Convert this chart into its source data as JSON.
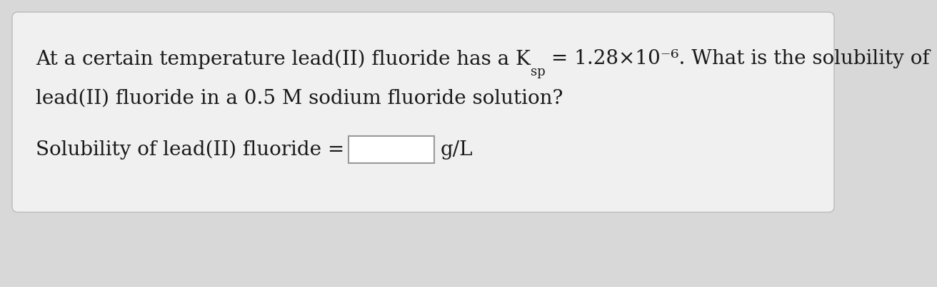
{
  "bg_color": "#d8d8d8",
  "card_color": "#f0f0f0",
  "card_edge_color": "#bbbbbb",
  "text_color": "#1a1a1a",
  "line1_part1": "At a certain temperature lead(II) fluoride has a K",
  "line1_sub": "sp",
  "line1_part2": " = 1.28×10⁻⁶. What is the solubility of",
  "line2": "lead(II) fluoride in a 0.5 M sodium fluoride solution?",
  "line3_prefix": "Solubility of lead(II) fluoride =",
  "line3_suffix": "g/L",
  "font_size_main": 20,
  "font_size_sub": 13,
  "fig_width": 12.0,
  "fig_height": 3.83
}
